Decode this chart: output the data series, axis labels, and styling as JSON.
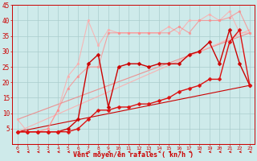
{
  "xlabel": "Vent moyen/en rafales ( kn/h )",
  "background_color": "#ceeaea",
  "grid_color": "#aacccc",
  "xlim": [
    -0.5,
    23.5
  ],
  "ylim": [
    0,
    45
  ],
  "yticks": [
    0,
    5,
    10,
    15,
    20,
    25,
    30,
    35,
    40,
    45
  ],
  "xticks": [
    0,
    1,
    2,
    3,
    4,
    5,
    6,
    7,
    8,
    9,
    10,
    11,
    12,
    13,
    14,
    15,
    16,
    17,
    18,
    19,
    20,
    21,
    22,
    23
  ],
  "series": [
    {
      "x": [
        0,
        23
      ],
      "y": [
        4,
        19
      ],
      "color": "#cc0000",
      "linewidth": 0.8,
      "marker": null,
      "markersize": 0,
      "alpha": 1.0,
      "linestyle": "-",
      "zorder": 2
    },
    {
      "x": [
        0,
        23
      ],
      "y": [
        8,
        36
      ],
      "color": "#ee8888",
      "linewidth": 0.8,
      "marker": null,
      "markersize": 0,
      "alpha": 0.9,
      "linestyle": "-",
      "zorder": 2
    },
    {
      "x": [
        0,
        23
      ],
      "y": [
        4,
        37
      ],
      "color": "#ffaaaa",
      "linewidth": 0.8,
      "marker": null,
      "markersize": 0,
      "alpha": 0.85,
      "linestyle": "-",
      "zorder": 2
    },
    {
      "x": [
        0,
        1,
        2,
        3,
        4,
        5,
        6,
        7,
        8,
        9,
        10,
        11,
        12,
        13,
        14,
        15,
        16,
        17,
        18,
        19,
        20,
        21,
        22,
        23
      ],
      "y": [
        8,
        4,
        4,
        5,
        11,
        22,
        26,
        40,
        32,
        37,
        36,
        36,
        36,
        36,
        36,
        38,
        36,
        40,
        40,
        42,
        40,
        43,
        36,
        36
      ],
      "color": "#ffaaaa",
      "linewidth": 0.8,
      "marker": "o",
      "markersize": 2.0,
      "alpha": 0.8,
      "linestyle": "-",
      "zorder": 3
    },
    {
      "x": [
        0,
        1,
        2,
        3,
        4,
        5,
        6,
        7,
        8,
        9,
        10,
        11,
        12,
        13,
        14,
        15,
        16,
        17,
        18,
        19,
        20,
        21,
        22,
        23
      ],
      "y": [
        4,
        4,
        4,
        5,
        11,
        18,
        22,
        25,
        25,
        36,
        36,
        36,
        36,
        36,
        36,
        36,
        38,
        36,
        40,
        40,
        40,
        41,
        43,
        36
      ],
      "color": "#ff8888",
      "linewidth": 0.8,
      "marker": "o",
      "markersize": 2.0,
      "alpha": 0.75,
      "linestyle": "-",
      "zorder": 3
    },
    {
      "x": [
        0,
        1,
        2,
        3,
        4,
        5,
        6,
        7,
        8,
        9,
        10,
        11,
        12,
        13,
        14,
        15,
        16,
        17,
        18,
        19,
        20,
        21,
        22,
        23
      ],
      "y": [
        4,
        4,
        4,
        4,
        4,
        5,
        8,
        26,
        29,
        12,
        25,
        26,
        26,
        25,
        26,
        26,
        26,
        29,
        30,
        33,
        26,
        37,
        26,
        19
      ],
      "color": "#cc0000",
      "linewidth": 1.0,
      "marker": "D",
      "markersize": 2.5,
      "alpha": 1.0,
      "linestyle": "-",
      "zorder": 5
    },
    {
      "x": [
        0,
        1,
        2,
        3,
        4,
        5,
        6,
        7,
        8,
        9,
        10,
        11,
        12,
        13,
        14,
        15,
        16,
        17,
        18,
        19,
        20,
        21,
        22,
        23
      ],
      "y": [
        4,
        4,
        4,
        4,
        4,
        4,
        5,
        8,
        11,
        11,
        12,
        12,
        13,
        13,
        14,
        15,
        17,
        18,
        19,
        21,
        21,
        33,
        37,
        19
      ],
      "color": "#dd1111",
      "linewidth": 1.0,
      "marker": "D",
      "markersize": 2.5,
      "alpha": 1.0,
      "linestyle": "-",
      "zorder": 5
    }
  ]
}
